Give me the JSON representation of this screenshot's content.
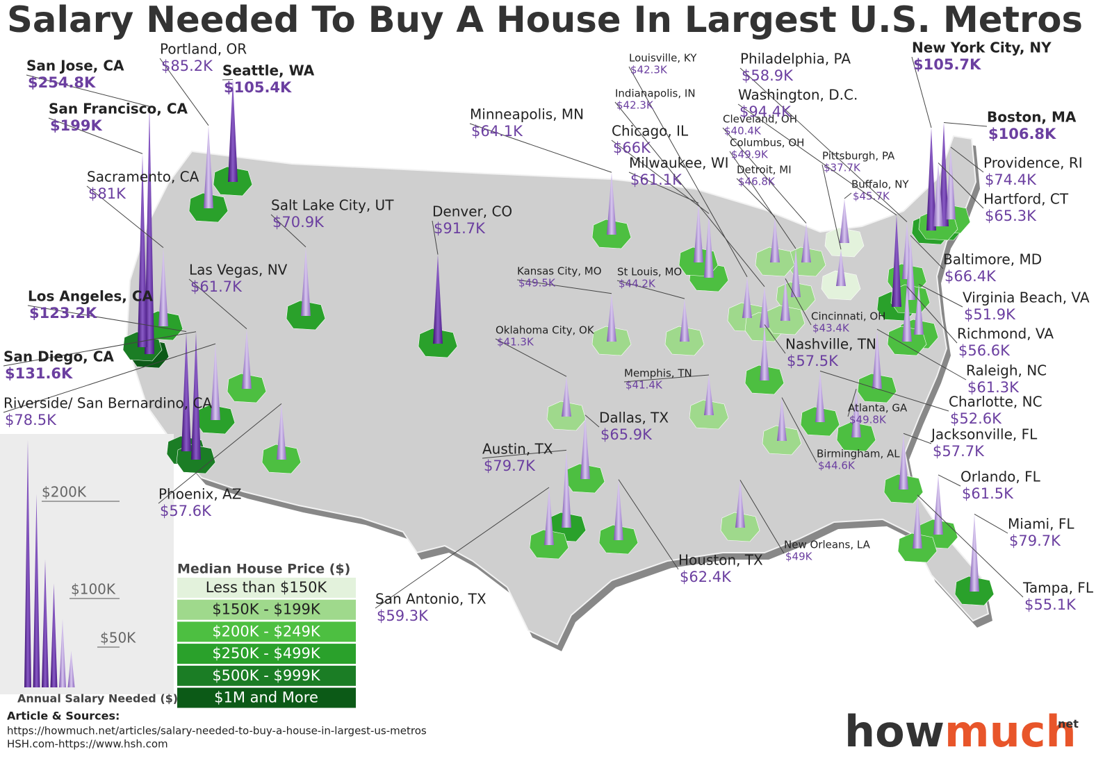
{
  "header": {
    "title": "Salary Needed To Buy A House In Largest U.S. Metros"
  },
  "metros": [
    {
      "name": "San Jose, CA",
      "value": 254.8,
      "label": "$254.8K",
      "tier": 5
    },
    {
      "name": "San Francisco, CA",
      "value": 199,
      "label": "$199K",
      "tier": 4
    },
    {
      "name": "Portland, OR",
      "value": 85.2,
      "label": "$85.2K",
      "tier": 3
    },
    {
      "name": "Seattle, WA",
      "value": 105.4,
      "label": "$105.4K",
      "tier": 3
    },
    {
      "name": "Sacramento, CA",
      "value": 81,
      "label": "$81K",
      "tier": 3
    },
    {
      "name": "Salt Lake City, UT",
      "value": 70.9,
      "label": "$70.9K",
      "tier": 3
    },
    {
      "name": "Denver, CO",
      "value": 91.7,
      "label": "$91.7K",
      "tier": 3
    },
    {
      "name": "Las Vegas, NV",
      "value": 61.7,
      "label": "$61.7K",
      "tier": 2
    },
    {
      "name": "Los Angeles, CA",
      "value": 123.2,
      "label": "$123.2K",
      "tier": 4
    },
    {
      "name": "San Diego, CA",
      "value": 131.6,
      "label": "$131.6K",
      "tier": 4
    },
    {
      "name": "Riverside/ San Bernardino, CA",
      "value": 78.5,
      "label": "$78.5K",
      "tier": 3
    },
    {
      "name": "Phoenix, AZ",
      "value": 57.6,
      "label": "$57.6K",
      "tier": 2
    },
    {
      "name": "Minneapolis, MN",
      "value": 64.1,
      "label": "$64.1K",
      "tier": 2
    },
    {
      "name": "Chicago, IL",
      "value": 66,
      "label": "$66K",
      "tier": 2
    },
    {
      "name": "Milwaukee, WI",
      "value": 61.1,
      "label": "$61.1K",
      "tier": 2
    },
    {
      "name": "Louisville, KY",
      "value": 42.3,
      "label": "$42.3K",
      "tier": 1
    },
    {
      "name": "Indianapolis, IN",
      "value": 42.3,
      "label": "$42.3K",
      "tier": 1
    },
    {
      "name": "Cleveland, OH",
      "value": 40.4,
      "label": "$40.4K",
      "tier": 1
    },
    {
      "name": "Columbus, OH",
      "value": 49.9,
      "label": "$49.9K",
      "tier": 1
    },
    {
      "name": "Detroit, MI",
      "value": 46.8,
      "label": "$46.8K",
      "tier": 1
    },
    {
      "name": "Pittsburgh, PA",
      "value": 37.7,
      "label": "$37.7K",
      "tier": 0
    },
    {
      "name": "Buffalo, NY",
      "value": 45.7,
      "label": "$45.7K",
      "tier": 0
    },
    {
      "name": "Philadelphia, PA",
      "value": 58.9,
      "label": "$58.9K",
      "tier": 2
    },
    {
      "name": "Washington, D.C.",
      "value": 94.4,
      "label": "$94.4K",
      "tier": 3
    },
    {
      "name": "New York City, NY",
      "value": 105.7,
      "label": "$105.7K",
      "tier": 3
    },
    {
      "name": "Boston, MA",
      "value": 106.8,
      "label": "$106.8K",
      "tier": 3
    },
    {
      "name": "Providence, RI",
      "value": 74.4,
      "label": "$74.4K",
      "tier": 2
    },
    {
      "name": "Hartford, CT",
      "value": 65.3,
      "label": "$65.3K",
      "tier": 2
    },
    {
      "name": "Baltimore, MD",
      "value": 66.4,
      "label": "$66.4K",
      "tier": 2
    },
    {
      "name": "Virginia Beach, VA",
      "value": 51.9,
      "label": "$51.9K",
      "tier": 2
    },
    {
      "name": "Richmond, VA",
      "value": 56.6,
      "label": "$56.6K",
      "tier": 2
    },
    {
      "name": "Kansas City, MO",
      "value": 49.5,
      "label": "$49.5K",
      "tier": 1
    },
    {
      "name": "St Louis, MO",
      "value": 44.2,
      "label": "$44.2K",
      "tier": 1
    },
    {
      "name": "Cincinnati, OH",
      "value": 43.4,
      "label": "$43.4K",
      "tier": 1
    },
    {
      "name": "Nashville, TN",
      "value": 57.5,
      "label": "$57.5K",
      "tier": 2
    },
    {
      "name": "Oklahoma City, OK",
      "value": 41.3,
      "label": "$41.3K",
      "tier": 1
    },
    {
      "name": "Memphis, TN",
      "value": 41.4,
      "label": "$41.4K",
      "tier": 1
    },
    {
      "name": "Raleigh, NC",
      "value": 61.3,
      "label": "$61.3K",
      "tier": 2
    },
    {
      "name": "Charlotte, NC",
      "value": 52.6,
      "label": "$52.6K",
      "tier": 2
    },
    {
      "name": "Atlanta, GA",
      "value": 49.8,
      "label": "$49.8K",
      "tier": 2
    },
    {
      "name": "Dallas, TX",
      "value": 65.9,
      "label": "$65.9K",
      "tier": 2
    },
    {
      "name": "Austin, TX",
      "value": 79.7,
      "label": "$79.7K",
      "tier": 3
    },
    {
      "name": "Jacksonville, FL",
      "value": 57.7,
      "label": "$57.7K",
      "tier": 2
    },
    {
      "name": "Birmingham, AL",
      "value": 44.6,
      "label": "$44.6K",
      "tier": 1
    },
    {
      "name": "Orlando, FL",
      "value": 61.5,
      "label": "$61.5K",
      "tier": 2
    },
    {
      "name": "Miami, FL",
      "value": 79.7,
      "label": "$79.7K",
      "tier": 3
    },
    {
      "name": "Tampa, FL",
      "value": 55.1,
      "label": "$55.1K",
      "tier": 2
    },
    {
      "name": "New Orleans, LA",
      "value": 49,
      "label": "$49K",
      "tier": 1
    },
    {
      "name": "Houston, TX",
      "value": 62.4,
      "label": "$62.4K",
      "tier": 2
    },
    {
      "name": "San Antonio, TX",
      "value": 59.3,
      "label": "$59.3K",
      "tier": 2
    }
  ],
  "legend": {
    "title": "Median House Price ($)",
    "tiers": [
      {
        "label": "Less than $150K",
        "color": "#e3f2dc"
      },
      {
        "label": "$150K - $199K",
        "color": "#9fd98c"
      },
      {
        "label": "$200K - $249K",
        "color": "#4dbf41"
      },
      {
        "label": "$250K - $499K",
        "color": "#2aa12b"
      },
      {
        "label": "$500K - $999K",
        "color": "#1b7d25"
      },
      {
        "label": "$1M and More",
        "color": "#0c5a17"
      }
    ]
  },
  "scale": {
    "label": "Annual Salary Needed ($)",
    "ticks": [
      {
        "value": 200,
        "label": "$200K"
      },
      {
        "value": 100,
        "label": "$100K"
      },
      {
        "value": 50,
        "label": "$50K"
      }
    ]
  },
  "footer": {
    "heading": "Article & Sources:",
    "url": "https://howmuch.net/articles/salary-needed-to-buy-a-house-in-largest-us-metros",
    "source": "HSH.com-https://www.hsh.com"
  },
  "logo": {
    "how": "how",
    "much": "much",
    "suffix": "net"
  }
}
